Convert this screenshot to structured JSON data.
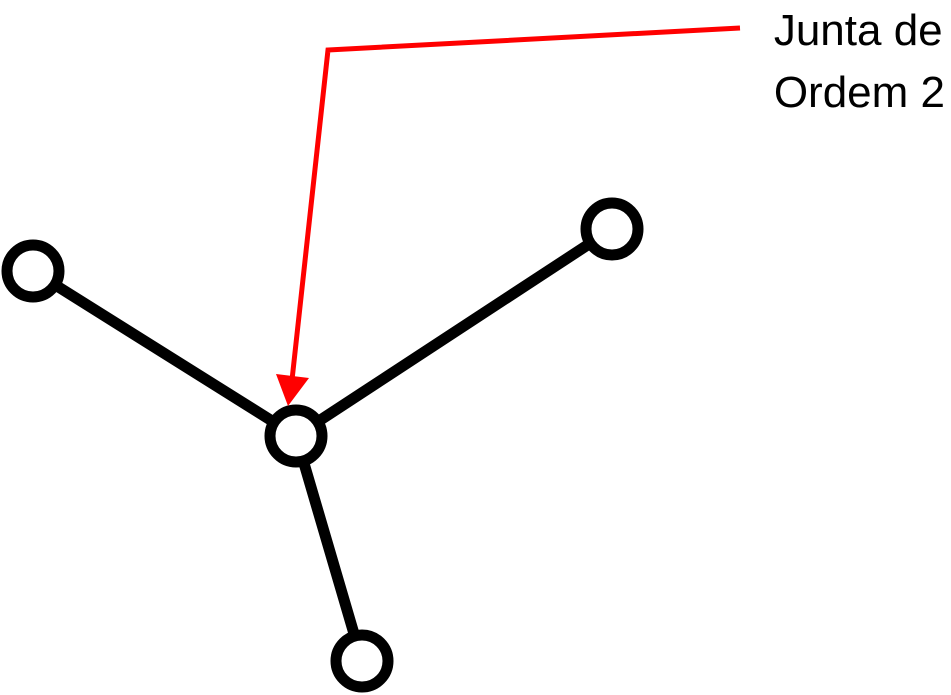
{
  "annotation": {
    "line1": "Junta de",
    "line2": "Ordem 2"
  },
  "colors": {
    "structure": "#000000",
    "annotation_arrow": "#ff0000",
    "node_fill": "#ffffff",
    "background": "#ffffff"
  },
  "diagram": {
    "nodes": [
      "node-top-left",
      "node-top-right",
      "node-center",
      "node-bottom"
    ],
    "edges": [
      [
        "node-center",
        "node-top-left"
      ],
      [
        "node-center",
        "node-top-right"
      ],
      [
        "node-center",
        "node-bottom"
      ]
    ],
    "highlighted_node": "node-center"
  }
}
